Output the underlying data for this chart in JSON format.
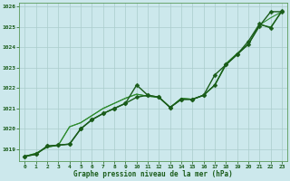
{
  "title": "Graphe pression niveau de la mer (hPa)",
  "xlabel_ticks": [
    0,
    1,
    2,
    3,
    4,
    5,
    6,
    7,
    8,
    9,
    10,
    11,
    12,
    13,
    14,
    15,
    16,
    17,
    18,
    19,
    20,
    21,
    22,
    23
  ],
  "ylim": [
    1018.4,
    1026.2
  ],
  "yticks": [
    1019,
    1020,
    1021,
    1022,
    1023,
    1024,
    1025,
    1026
  ],
  "bg_color": "#cce8ec",
  "grid_color": "#aacccc",
  "line_color_dark": "#1a5c1a",
  "line_color_light": "#2e8b2e",
  "series": [
    {
      "y": [
        1018.65,
        1018.75,
        1019.15,
        1019.2,
        1019.25,
        1020.0,
        1020.45,
        1020.75,
        1021.0,
        1021.25,
        1021.55,
        1021.65,
        1021.55,
        1021.05,
        1021.45,
        1021.45,
        1021.65,
        1022.15,
        1023.15,
        1023.65,
        1024.15,
        1025.05,
        1025.75,
        1025.75
      ],
      "color": "#1a5c1a",
      "lw": 1.0,
      "marker": "D",
      "ms": 2.5,
      "zorder": 3
    },
    {
      "y": [
        1018.65,
        1018.75,
        1019.15,
        1019.2,
        1019.25,
        1020.0,
        1020.45,
        1020.75,
        1021.0,
        1021.25,
        1022.15,
        1021.65,
        1021.55,
        1021.05,
        1021.45,
        1021.45,
        1021.65,
        1022.65,
        1023.15,
        1023.65,
        1024.3,
        1025.15,
        1024.95,
        1025.8
      ],
      "color": "#1a5c1a",
      "lw": 1.0,
      "marker": "D",
      "ms": 2.5,
      "zorder": 4
    },
    {
      "y": [
        1018.65,
        1018.8,
        1019.1,
        1019.2,
        1020.1,
        1020.3,
        1020.65,
        1021.0,
        1021.25,
        1021.5,
        1021.7,
        1021.6,
        1021.55,
        1021.05,
        1021.5,
        1021.45,
        1021.65,
        1022.15,
        1023.2,
        1023.7,
        1024.15,
        1025.1,
        1025.45,
        1025.75
      ],
      "color": "#2e8b2e",
      "lw": 0.8,
      "marker": null,
      "ms": 0,
      "zorder": 2
    },
    {
      "y": [
        1018.65,
        1018.8,
        1019.1,
        1019.2,
        1020.1,
        1020.3,
        1020.65,
        1021.0,
        1021.25,
        1021.5,
        1021.7,
        1021.6,
        1021.55,
        1021.05,
        1021.5,
        1021.45,
        1021.65,
        1022.15,
        1023.2,
        1023.7,
        1024.15,
        1025.1,
        1025.0,
        1025.75
      ],
      "color": "#2e8b2e",
      "lw": 0.8,
      "marker": null,
      "ms": 0,
      "zorder": 2
    }
  ]
}
